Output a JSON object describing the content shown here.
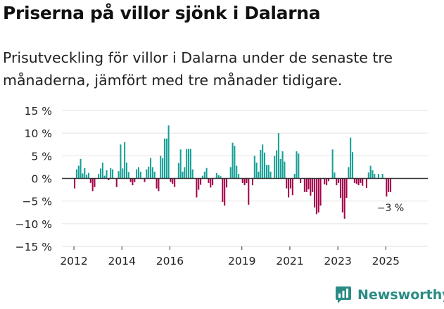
{
  "header": {
    "title": "Priserna på villor sjönk i Dalarna",
    "subtitle": "Prisutveckling för villor i Dalarna under de senaste tre månaderna, jämfört med tre månader tidigare."
  },
  "branding": {
    "name": "Newsworthy",
    "color": "#2a8c84",
    "icon": "newsworthy-logo-icon"
  },
  "colors": {
    "positive": "#17a096",
    "negative": "#a3054b",
    "grid": "#e2e2e2",
    "zero": "#333333"
  },
  "chart_data": {
    "type": "bar",
    "title": "Priserna på villor sjönk i Dalarna",
    "xlabel": "",
    "ylabel": "",
    "ylim": [
      -15,
      15
    ],
    "yticks": [
      -15,
      -10,
      -5,
      0,
      5,
      10,
      15
    ],
    "ytick_labels": [
      "−15 %",
      "−10 %",
      "−5 %",
      "0 %",
      "5 %",
      "10 %",
      "15 %"
    ],
    "xlim": [
      2011.5,
      2026.75
    ],
    "xticks": [
      2012,
      2014,
      2016,
      2019,
      2021,
      2023,
      2025
    ],
    "xtick_labels": [
      "2012",
      "2014",
      "2016",
      "2019",
      "2021",
      "2023",
      "2025"
    ],
    "annotation": {
      "text": "−3 %",
      "value": -3
    },
    "start_year": 2012,
    "start_month": 0,
    "values": [
      -2.2,
      2.0,
      2.8,
      4.3,
      1.1,
      2.3,
      0.8,
      1.2,
      -1.0,
      -2.8,
      -1.9,
      0.0,
      1.0,
      2.2,
      3.5,
      0.6,
      1.8,
      -0.4,
      2.3,
      2.0,
      0.0,
      -1.9,
      1.6,
      7.5,
      2.2,
      8.0,
      3.5,
      1.4,
      -0.8,
      -1.5,
      -0.8,
      2.0,
      2.5,
      1.5,
      0.0,
      -0.8,
      2.0,
      2.6,
      4.5,
      2.5,
      1.5,
      -2.2,
      -2.8,
      5.0,
      4.5,
      8.8,
      8.8,
      11.7,
      -0.8,
      -1.2,
      -1.9,
      0.0,
      3.4,
      6.4,
      1.5,
      2.5,
      6.5,
      6.5,
      6.5,
      2.0,
      0.0,
      -4.2,
      -2.5,
      -1.4,
      0.6,
      1.5,
      2.3,
      -1.0,
      -2.0,
      -1.5,
      0.0,
      1.2,
      0.7,
      0.5,
      -5.2,
      -6.0,
      -2.0,
      0.0,
      2.5,
      7.9,
      7.2,
      2.8,
      1.0,
      0.0,
      -1.0,
      -1.5,
      -1.0,
      -5.8,
      0.0,
      -1.5,
      5.0,
      3.5,
      1.5,
      6.3,
      7.5,
      5.7,
      3.0,
      3.0,
      1.5,
      0.0,
      5.0,
      6.2,
      10.0,
      4.3,
      6.0,
      3.7,
      -2.2,
      -4.2,
      -2.2,
      -3.7,
      1.0,
      6.0,
      5.5,
      -1.0,
      0.0,
      -3.0,
      -3.0,
      -2.4,
      -3.8,
      -3.0,
      -6.4,
      -7.9,
      -7.5,
      -6.0,
      0.0,
      -1.3,
      -1.5,
      -0.6,
      0.0,
      6.4,
      1.3,
      -1.5,
      -1.0,
      -4.3,
      -7.5,
      -8.9,
      -4.3,
      2.5,
      9.0,
      5.8,
      -1.0,
      -1.2,
      -1.5,
      -1.0,
      -1.6,
      0.0,
      -2.1,
      1.3,
      2.8,
      1.8,
      1.0,
      0.0,
      1.0,
      0.0,
      1.0,
      0.0,
      -4.0,
      -3.0,
      -3.0
    ]
  }
}
